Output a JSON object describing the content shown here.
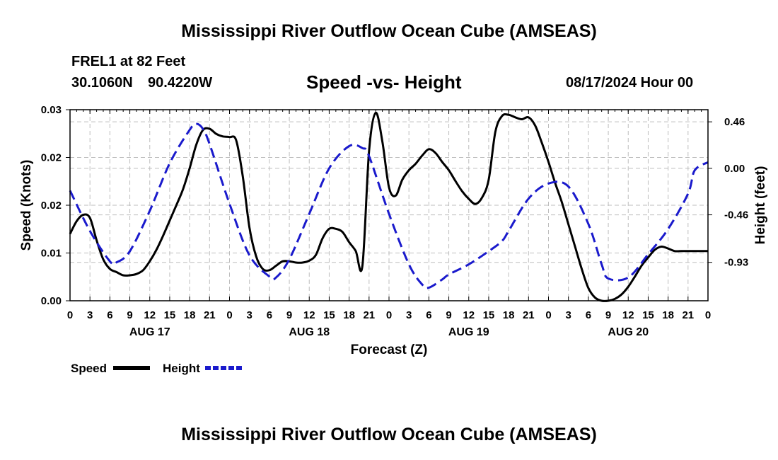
{
  "header": {
    "title": "Mississippi River Outflow Ocean Cube (AMSEAS)",
    "station": "FREL1 at 82 Feet",
    "lat": "30.1060N",
    "lon": "90.4220W",
    "subtitle": "Speed -vs- Height",
    "date": "08/17/2024 Hour 00"
  },
  "footer": {
    "title": "Mississippi River Outflow Ocean Cube (AMSEAS)"
  },
  "chart_data": {
    "type": "line",
    "title": "Speed -vs- Height",
    "xlabel": "Forecast (Z)",
    "ylabel_left": "Speed (Knots)",
    "ylabel_right": "Height (feet)",
    "xlim": [
      0,
      96
    ],
    "ylim_left": [
      0,
      0.03
    ],
    "ylim_right": [
      -1.31,
      0.58
    ],
    "x_tick_labels": [
      "0",
      "3",
      "6",
      "9",
      "12",
      "15",
      "18",
      "21",
      "0",
      "3",
      "6",
      "9",
      "12",
      "15",
      "18",
      "21",
      "0",
      "3",
      "6",
      "9",
      "12",
      "15",
      "18",
      "21",
      "0",
      "3",
      "6",
      "9",
      "12",
      "15",
      "18",
      "21",
      "0"
    ],
    "left_tick_labels": [
      "0.00",
      "0.01",
      "0.02",
      "0.02",
      "0.03"
    ],
    "left_tick_values": [
      0,
      0.0075,
      0.015,
      0.0225,
      0.03
    ],
    "right_tick_labels": [
      "0.46",
      "0.00",
      "-0.46",
      "-0.93"
    ],
    "right_tick_values": [
      0.46,
      0.0,
      -0.46,
      -0.93
    ],
    "day_labels": [
      "AUG 17",
      "AUG 18",
      "AUG 19",
      "AUG 20"
    ],
    "day_label_hours": [
      12,
      36,
      60,
      84
    ],
    "grid": true,
    "legend": {
      "speed": "Speed",
      "height": "Height",
      "position": "bottom-left"
    },
    "colors": {
      "speed": "#000000",
      "height": "#1a1acc",
      "grid": "#bdbdbd"
    },
    "series": [
      {
        "name": "Speed",
        "axis": "left",
        "x": [
          0,
          1,
          2,
          3,
          4,
          5,
          6,
          7,
          8,
          9,
          10,
          11,
          12,
          13,
          14,
          15,
          16,
          17,
          18,
          19,
          20,
          21,
          22,
          23,
          24,
          25,
          26,
          27,
          28,
          29,
          30,
          31,
          32,
          33,
          34,
          35,
          36,
          37,
          38,
          39,
          40,
          41,
          42,
          43,
          44,
          45,
          46,
          47,
          48,
          49,
          50,
          51,
          52,
          53,
          54,
          55,
          56,
          57,
          58,
          59,
          60,
          61,
          62,
          63,
          64,
          65,
          66,
          67,
          68,
          69,
          70,
          71,
          72,
          73,
          74,
          75,
          76,
          77,
          78,
          79,
          80,
          81,
          82,
          83,
          84,
          85,
          86,
          87,
          88,
          89,
          90,
          91,
          92,
          93,
          94,
          95,
          96
        ],
        "values": [
          0.0105,
          0.0125,
          0.0135,
          0.013,
          0.0095,
          0.0065,
          0.005,
          0.0045,
          0.004,
          0.004,
          0.0042,
          0.0048,
          0.0062,
          0.008,
          0.0102,
          0.0126,
          0.015,
          0.0175,
          0.0208,
          0.0245,
          0.0268,
          0.027,
          0.0262,
          0.0258,
          0.0257,
          0.0252,
          0.0195,
          0.0115,
          0.007,
          0.005,
          0.0048,
          0.0055,
          0.0062,
          0.0062,
          0.006,
          0.006,
          0.0063,
          0.0072,
          0.0098,
          0.0113,
          0.0113,
          0.0108,
          0.0092,
          0.0078,
          0.0055,
          0.0235,
          0.0295,
          0.025,
          0.0178,
          0.0165,
          0.019,
          0.0205,
          0.0215,
          0.0228,
          0.0238,
          0.0232,
          0.0218,
          0.0205,
          0.0188,
          0.0172,
          0.016,
          0.0152,
          0.0162,
          0.019,
          0.0265,
          0.029,
          0.0292,
          0.0288,
          0.0285,
          0.0288,
          0.0275,
          0.0248,
          0.0218,
          0.0185,
          0.0155,
          0.012,
          0.0085,
          0.005,
          0.002,
          0.0005,
          0.0,
          0.0,
          0.0003,
          0.001,
          0.0022,
          0.0038,
          0.0055,
          0.0068,
          0.008,
          0.0085,
          0.0082,
          0.0078,
          0.0078,
          0.0078,
          0.0078,
          0.0078,
          0.0078
        ]
      },
      {
        "name": "Height",
        "axis": "right",
        "x": [
          0,
          3,
          6,
          7,
          9,
          12,
          15,
          18,
          19,
          20,
          21,
          24,
          27,
          30,
          31,
          33,
          36,
          39,
          42,
          44,
          45,
          48,
          51,
          53,
          54,
          56,
          57,
          60,
          63,
          65,
          66,
          69,
          72,
          75,
          78,
          80,
          81,
          84,
          87,
          90,
          93,
          94,
          96
        ],
        "values": [
          -0.22,
          -0.62,
          -0.92,
          -0.93,
          -0.82,
          -0.42,
          0.05,
          0.38,
          0.44,
          0.39,
          0.24,
          -0.35,
          -0.86,
          -1.07,
          -1.08,
          -0.9,
          -0.45,
          0.0,
          0.22,
          0.2,
          0.12,
          -0.45,
          -0.95,
          -1.15,
          -1.18,
          -1.1,
          -1.05,
          -0.95,
          -0.82,
          -0.72,
          -0.62,
          -0.3,
          -0.15,
          -0.18,
          -0.55,
          -0.95,
          -1.09,
          -1.08,
          -0.85,
          -0.6,
          -0.25,
          -0.02,
          0.06
        ]
      }
    ]
  }
}
